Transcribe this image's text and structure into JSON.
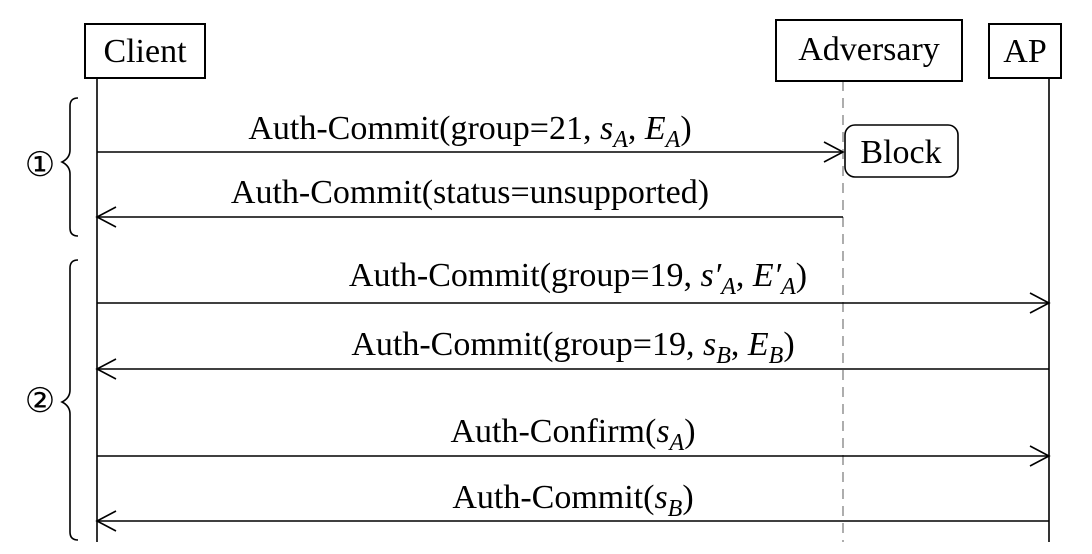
{
  "participants": {
    "client": "Client",
    "adversary": "Adversary",
    "ap": "AP"
  },
  "phases": [
    {
      "marker": "①"
    },
    {
      "marker": "②"
    }
  ],
  "block_label": "Block",
  "messages": [
    {
      "from": "client",
      "to": "adversary",
      "parts": [
        {
          "t": "Auth-Commit(group=21, "
        },
        {
          "t": "s",
          "it": true
        },
        {
          "t": "A",
          "it": true,
          "sub": true
        },
        {
          "t": ", "
        },
        {
          "t": "E",
          "it": true
        },
        {
          "t": "A",
          "it": true,
          "sub": true
        },
        {
          "t": ")"
        }
      ]
    },
    {
      "from": "adversary",
      "to": "client",
      "parts": [
        {
          "t": "Auth-Commit(status=unsupported)"
        }
      ]
    },
    {
      "from": "client",
      "to": "ap",
      "parts": [
        {
          "t": "Auth-Commit(group=19, "
        },
        {
          "t": "s′",
          "it": true
        },
        {
          "t": "A",
          "it": true,
          "sub": true
        },
        {
          "t": ", "
        },
        {
          "t": "E′",
          "it": true
        },
        {
          "t": "A",
          "it": true,
          "sub": true
        },
        {
          "t": ")"
        }
      ]
    },
    {
      "from": "ap",
      "to": "client",
      "parts": [
        {
          "t": "Auth-Commit(group=19, "
        },
        {
          "t": "s",
          "it": true
        },
        {
          "t": "B",
          "it": true,
          "sub": true
        },
        {
          "t": ", "
        },
        {
          "t": "E",
          "it": true
        },
        {
          "t": "B",
          "it": true,
          "sub": true
        },
        {
          "t": ")"
        }
      ]
    },
    {
      "from": "client",
      "to": "ap",
      "parts": [
        {
          "t": "Auth-Confirm("
        },
        {
          "t": "s",
          "it": true
        },
        {
          "t": "A",
          "it": true,
          "sub": true
        },
        {
          "t": ")"
        }
      ]
    },
    {
      "from": "ap",
      "to": "client",
      "parts": [
        {
          "t": "Auth-Commit("
        },
        {
          "t": "s",
          "it": true
        },
        {
          "t": "B",
          "it": true,
          "sub": true
        },
        {
          "t": ")"
        }
      ]
    }
  ]
}
